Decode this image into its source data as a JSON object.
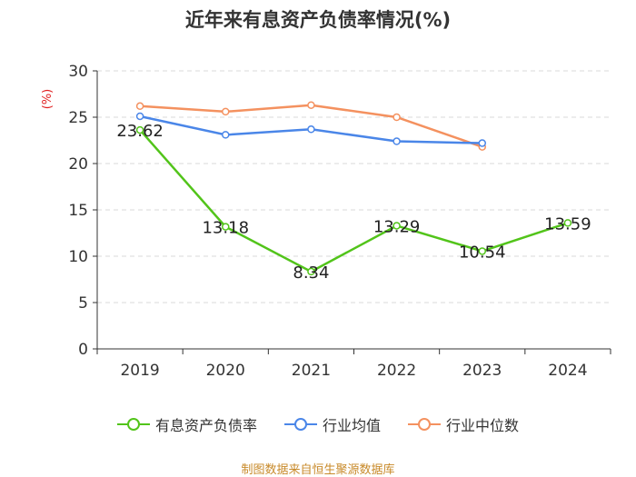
{
  "chart_data": {
    "type": "line",
    "title": "近年来有息资产负债率情况(%)",
    "ylabel": "(%)",
    "xlabel": "",
    "categories": [
      "2019",
      "2020",
      "2021",
      "2022",
      "2023",
      "2024"
    ],
    "ylim": [
      0,
      30
    ],
    "yticks": [
      0,
      5,
      10,
      15,
      20,
      25,
      30
    ],
    "grid": true,
    "legend_position": "bottom",
    "series": [
      {
        "name": "有息资产负债率",
        "color": "#52c41a",
        "values": [
          23.62,
          13.18,
          8.34,
          13.29,
          10.54,
          13.59
        ],
        "labels": [
          "23.62",
          "13.18",
          "8.34",
          "13.29",
          "10.54",
          "13.59"
        ]
      },
      {
        "name": "行业均值",
        "color": "#4a86e8",
        "values": [
          25.1,
          23.1,
          23.7,
          22.4,
          22.2,
          null
        ]
      },
      {
        "name": "行业中位数",
        "color": "#f4915f",
        "values": [
          26.2,
          25.6,
          26.3,
          25.0,
          21.8,
          null
        ]
      }
    ],
    "source": "制图数据来自恒生聚源数据库"
  }
}
